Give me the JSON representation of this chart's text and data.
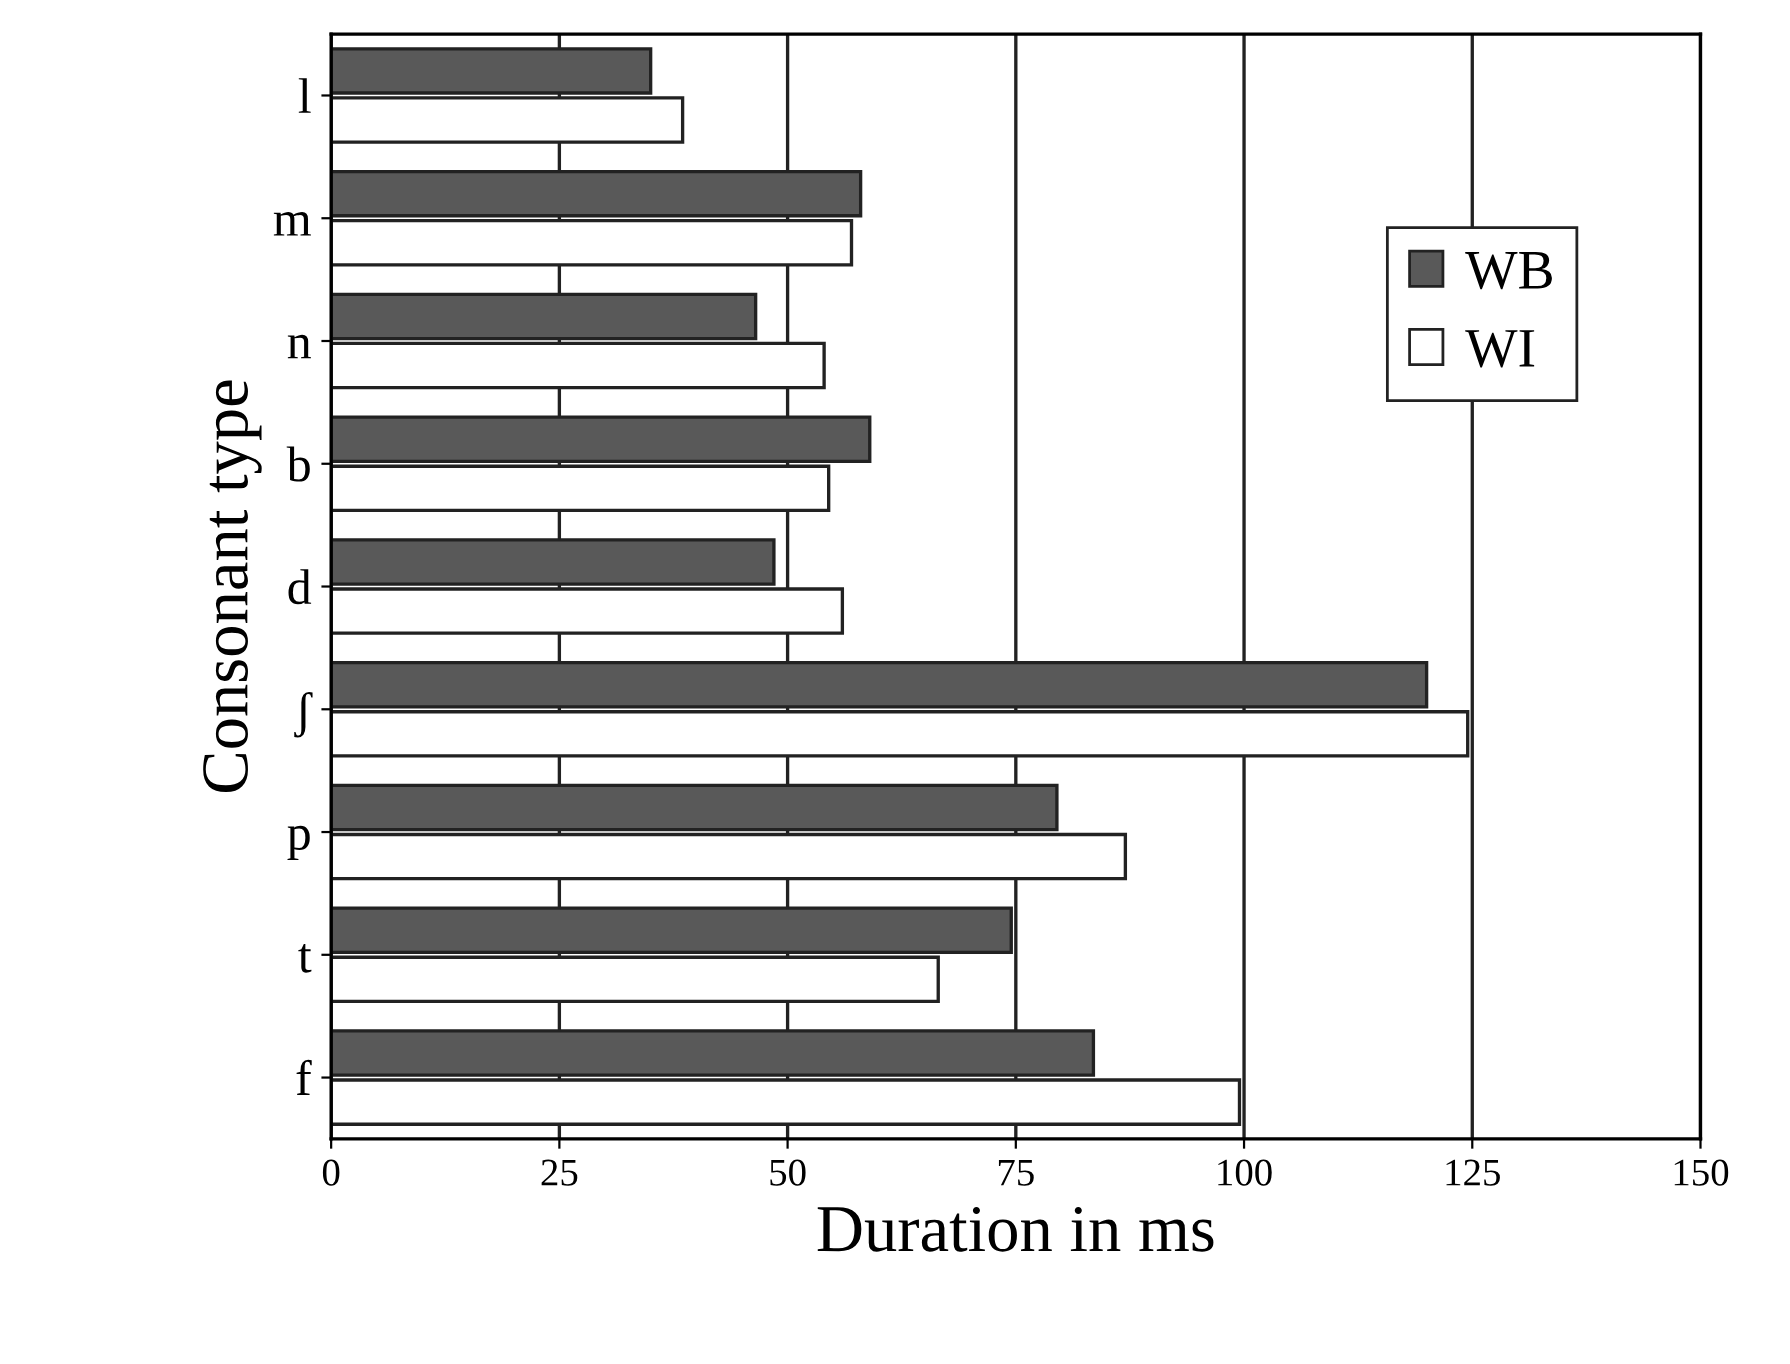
{
  "chart_data": {
    "type": "bar",
    "orientation": "horizontal",
    "xlabel": "Duration in ms",
    "ylabel": "Consonant type",
    "categories": [
      "l",
      "m",
      "n",
      "b",
      "d",
      "ʃ",
      "p",
      "t",
      "f"
    ],
    "series": [
      {
        "name": "WB",
        "color": "#595959",
        "values": [
          35,
          58,
          46.5,
          59,
          48.5,
          120,
          79.5,
          74.5,
          83.5
        ]
      },
      {
        "name": "WI",
        "color": "#ffffff",
        "values": [
          38.5,
          57,
          54,
          54.5,
          56,
          124.5,
          87,
          66.5,
          99.5
        ]
      }
    ],
    "xlim": [
      0,
      150
    ],
    "xticks": [
      0,
      25,
      50,
      75,
      100,
      125,
      150
    ],
    "grid": "x",
    "legend": "top right"
  }
}
